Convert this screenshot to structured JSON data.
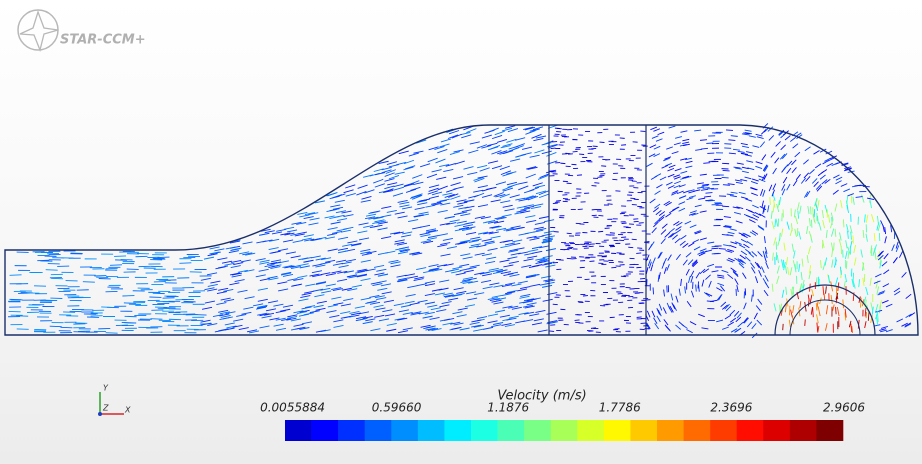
{
  "logo": "STAR-CCM+",
  "triad": {
    "y": "Y",
    "z": "Z",
    "x": "X"
  },
  "legend": {
    "title": "Velocity (m/s)",
    "ticks": [
      "0.0055884",
      "0.59660",
      "1.1876",
      "1.7786",
      "2.3696",
      "2.9606"
    ]
  }
}
